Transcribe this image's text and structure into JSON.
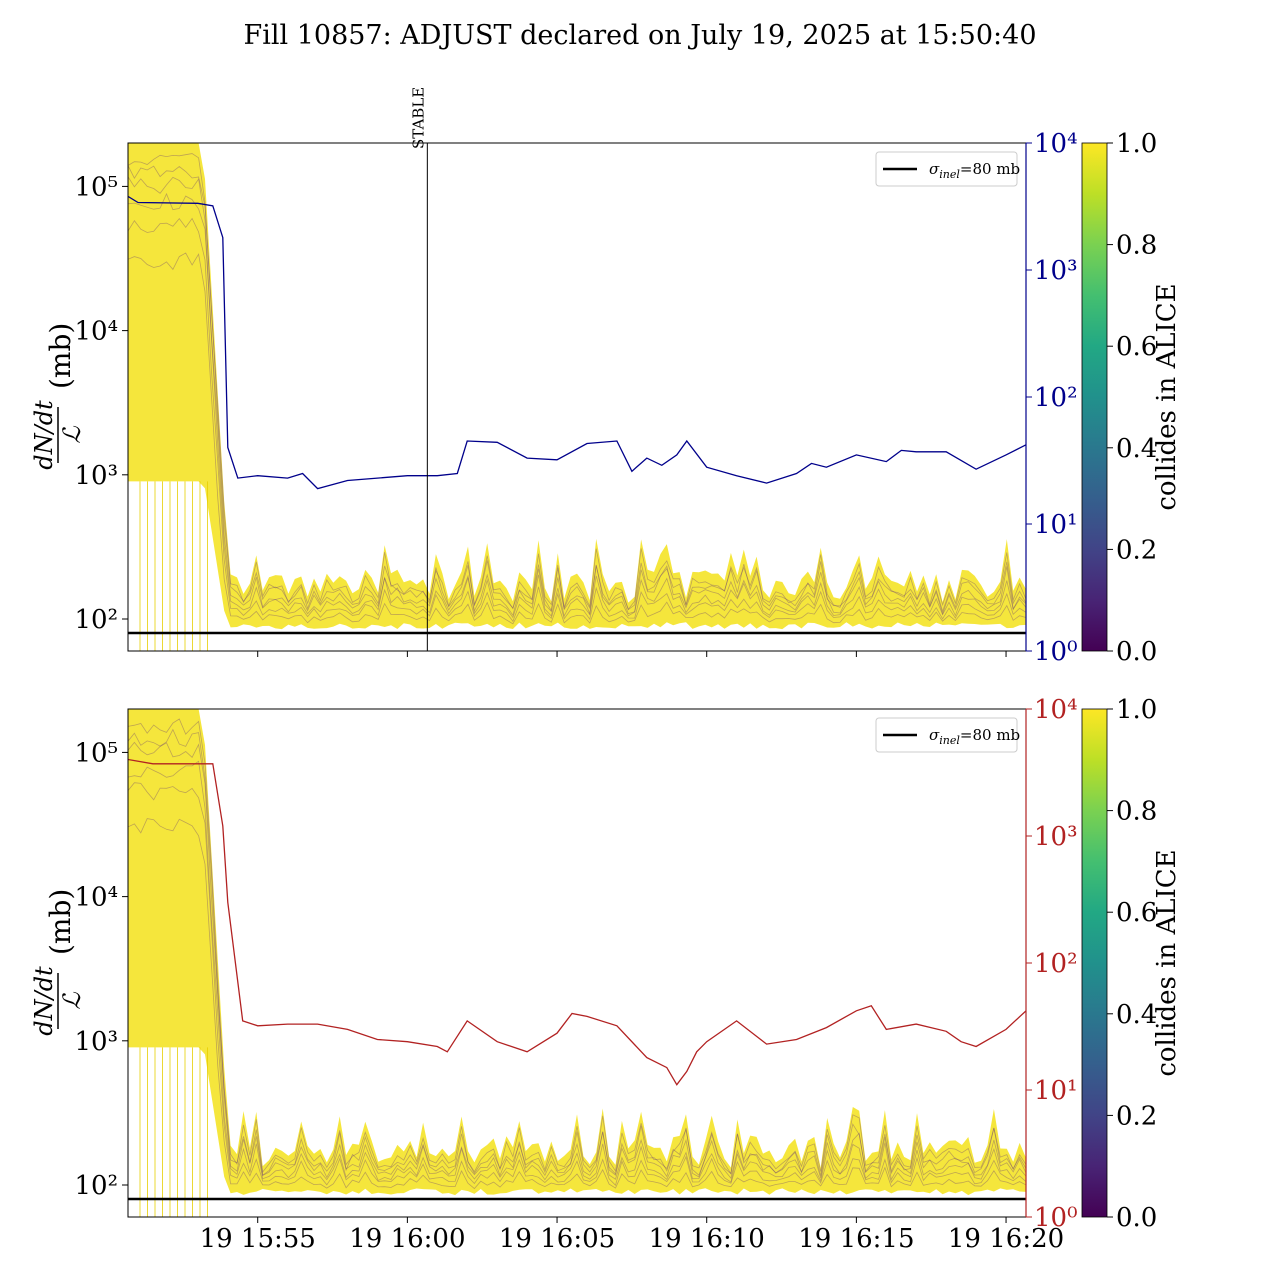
{
  "title": "Fill 10857: ADJUST declared on July 19, 2025 at 15:50:40",
  "colors": {
    "top_right_axis": "#00008b",
    "bottom_right_axis": "#b22222",
    "sigma_line": "#000000",
    "viridis_low": "#440154",
    "viridis_high": "#fde725"
  },
  "chart_data": [
    {
      "type": "line",
      "panel": "top",
      "ylabel_fraction_num": "dN/dt",
      "ylabel_fraction_den": "ℒ",
      "ylabel_unit": "(mb)",
      "yscale": "log",
      "ylim": [
        60,
        200000
      ],
      "yticks": [
        "10^2",
        "10^3",
        "10^4",
        "10^5"
      ],
      "right_axis": {
        "yscale": "log",
        "ylim": [
          1,
          10000
        ],
        "yticks": [
          "10^0",
          "10^1",
          "10^2",
          "10^3",
          "10^4"
        ]
      },
      "legend": {
        "label": "σ_inel=80 mb",
        "sigma_text": "σ",
        "sub_text": "inel",
        "rest_text": "=80 mb",
        "location": "top-right"
      },
      "annotation": {
        "text": "STABLE",
        "x": "16:00:40"
      },
      "x_range": [
        "15:50:40",
        "16:20:40"
      ],
      "hline": 80,
      "series": [
        {
          "axis": "right",
          "x": [
            "15:50:40",
            "15:51:00",
            "15:53:00",
            "15:53:30",
            "15:53:50",
            "15:54:00",
            "15:54:20",
            "15:55:00",
            "15:56:00",
            "15:56:30",
            "15:57:00",
            "15:58:00",
            "15:59:00",
            "16:00:00",
            "16:01:00",
            "16:01:40",
            "16:02:00",
            "16:03:00",
            "16:04:00",
            "16:05:00",
            "16:06:00",
            "16:07:00",
            "16:07:30",
            "16:08:00",
            "16:08:30",
            "16:09:00",
            "16:09:20",
            "16:10:00",
            "16:11:00",
            "16:12:00",
            "16:13:00",
            "16:13:30",
            "16:14:00",
            "16:15:00",
            "16:16:00",
            "16:16:30",
            "16:17:00",
            "16:18:00",
            "16:19:00",
            "16:20:00",
            "16:20:40"
          ],
          "y": [
            3800,
            3400,
            3350,
            3200,
            1800,
            40,
            23,
            24,
            23,
            25,
            19,
            22,
            23,
            24,
            24,
            25,
            45,
            44,
            33,
            32,
            43,
            45,
            26,
            33,
            29,
            35,
            45,
            28,
            24,
            21,
            25,
            30,
            28,
            35,
            31,
            38,
            37,
            37,
            27,
            35,
            42
          ]
        }
      ]
    },
    {
      "type": "line",
      "panel": "bottom",
      "ylabel_fraction_num": "dN/dt",
      "ylabel_fraction_den": "ℒ",
      "ylabel_unit": "(mb)",
      "yscale": "log",
      "ylim": [
        60,
        200000
      ],
      "yticks": [
        "10^2",
        "10^3",
        "10^4",
        "10^5"
      ],
      "right_axis": {
        "yscale": "log",
        "ylim": [
          1,
          10000
        ],
        "yticks": [
          "10^0",
          "10^1",
          "10^2",
          "10^3",
          "10^4"
        ]
      },
      "legend": {
        "label": "σ_inel=80 mb",
        "sigma_text": "σ",
        "sub_text": "inel",
        "rest_text": "=80 mb",
        "location": "top-right"
      },
      "x_range": [
        "15:50:40",
        "16:20:40"
      ],
      "xticks": [
        "19 15:55",
        "19 16:00",
        "19 16:05",
        "19 16:10",
        "19 16:15",
        "19 16:20"
      ],
      "hline": 80,
      "series": [
        {
          "axis": "right",
          "x": [
            "15:50:40",
            "15:51:30",
            "15:53:00",
            "15:53:30",
            "15:53:50",
            "15:54:00",
            "15:54:30",
            "15:55:00",
            "15:56:00",
            "15:57:00",
            "15:58:00",
            "15:59:00",
            "16:00:00",
            "16:01:00",
            "16:01:20",
            "16:02:00",
            "16:03:00",
            "16:04:00",
            "16:05:00",
            "16:05:30",
            "16:06:00",
            "16:07:00",
            "16:08:00",
            "16:08:40",
            "16:09:00",
            "16:09:20",
            "16:09:40",
            "16:10:00",
            "16:11:00",
            "16:12:00",
            "16:13:00",
            "16:14:00",
            "16:15:00",
            "16:15:30",
            "16:16:00",
            "16:17:00",
            "16:18:00",
            "16:18:30",
            "16:19:00",
            "16:20:00",
            "16:20:40"
          ],
          "y": [
            4000,
            3700,
            3700,
            3700,
            1200,
            300,
            35,
            32,
            33,
            33,
            30,
            25,
            24,
            22,
            20,
            35,
            24,
            20,
            28,
            40,
            38,
            32,
            18,
            15,
            11,
            14,
            20,
            24,
            35,
            23,
            25,
            31,
            42,
            46,
            30,
            33,
            29,
            24,
            22,
            30,
            42
          ]
        }
      ]
    },
    {
      "type": "heatmap",
      "role": "colorbar",
      "label": "collides in ALICE",
      "range": [
        0.0,
        1.0
      ],
      "ticks": [
        "0.0",
        "0.2",
        "0.4",
        "0.6",
        "0.8",
        "1.0"
      ],
      "colormap": "viridis"
    }
  ]
}
